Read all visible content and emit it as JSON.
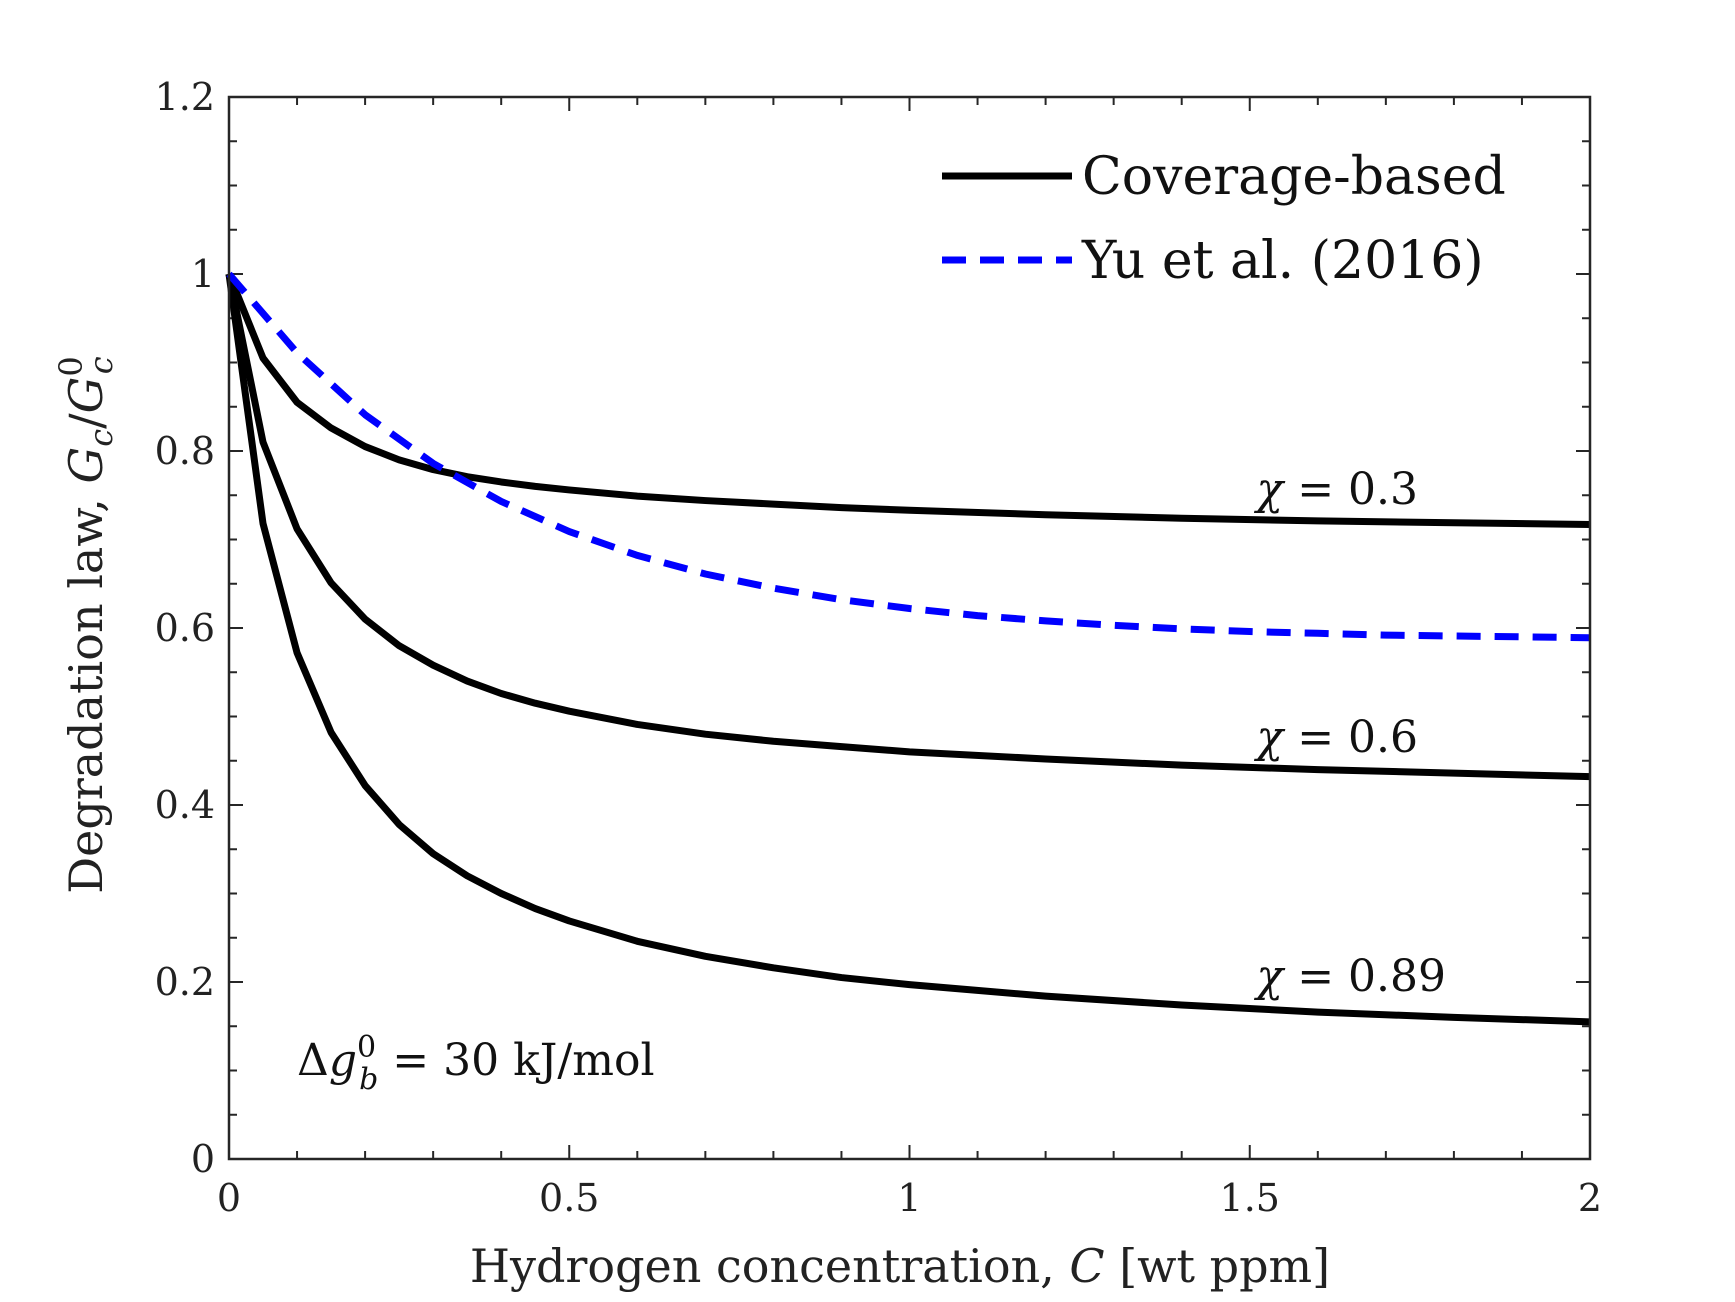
{
  "chart_data": {
    "type": "line",
    "title": "",
    "xlabel": {
      "prefix": "Hydrogen concentration, ",
      "symbol": "C",
      "suffix": " [wt ppm]"
    },
    "ylabel": {
      "prefix": "Degradation law, ",
      "num": "G",
      "num_sub": "c",
      "slash": "/",
      "den": "G",
      "den_sub": "c",
      "den_sup": "0"
    },
    "xlim": [
      0,
      2
    ],
    "ylim": [
      0,
      1.2
    ],
    "xticks": [
      0,
      0.5,
      1,
      1.5,
      2
    ],
    "xtick_labels": [
      "0",
      "0.5",
      "1",
      "1.5",
      "2"
    ],
    "yticks": [
      0,
      0.2,
      0.4,
      0.6,
      0.8,
      1,
      1.2
    ],
    "ytick_labels": [
      "0",
      "0.2",
      "0.4",
      "0.6",
      "0.8",
      "1",
      "1.2"
    ],
    "minor_x_step": 0.1,
    "minor_y_step": 0.05,
    "grid": false,
    "legend_position": "top-right",
    "legend": [
      {
        "label": "Coverage-based",
        "style": "solid",
        "color": "#000000"
      },
      {
        "label": "Yu et al. (2016)",
        "style": "dashed",
        "color": "#0000ff"
      }
    ],
    "series": [
      {
        "name": "Coverage-based, χ = 0.3",
        "style": "solid",
        "color": "#000000",
        "x": [
          0,
          0.05,
          0.1,
          0.15,
          0.2,
          0.25,
          0.3,
          0.35,
          0.4,
          0.45,
          0.5,
          0.6,
          0.7,
          0.8,
          0.9,
          1.0,
          1.2,
          1.4,
          1.6,
          1.8,
          2.0
        ],
        "y": [
          1.0,
          0.905,
          0.855,
          0.826,
          0.805,
          0.79,
          0.779,
          0.771,
          0.765,
          0.76,
          0.756,
          0.749,
          0.744,
          0.74,
          0.736,
          0.733,
          0.728,
          0.724,
          0.721,
          0.719,
          0.717
        ]
      },
      {
        "name": "Coverage-based, χ = 0.6",
        "style": "solid",
        "color": "#000000",
        "x": [
          0,
          0.05,
          0.1,
          0.15,
          0.2,
          0.25,
          0.3,
          0.35,
          0.4,
          0.45,
          0.5,
          0.6,
          0.7,
          0.8,
          0.9,
          1.0,
          1.2,
          1.4,
          1.6,
          1.8,
          2.0
        ],
        "y": [
          1.0,
          0.81,
          0.712,
          0.651,
          0.61,
          0.58,
          0.558,
          0.54,
          0.526,
          0.515,
          0.506,
          0.491,
          0.48,
          0.472,
          0.466,
          0.46,
          0.452,
          0.445,
          0.44,
          0.436,
          0.432
        ]
      },
      {
        "name": "Coverage-based, χ = 0.89",
        "style": "solid",
        "color": "#000000",
        "x": [
          0,
          0.05,
          0.1,
          0.15,
          0.2,
          0.25,
          0.3,
          0.35,
          0.4,
          0.45,
          0.5,
          0.6,
          0.7,
          0.8,
          0.9,
          1.0,
          1.2,
          1.4,
          1.6,
          1.8,
          2.0
        ],
        "y": [
          1.0,
          0.718,
          0.572,
          0.482,
          0.422,
          0.378,
          0.345,
          0.32,
          0.3,
          0.283,
          0.269,
          0.246,
          0.229,
          0.216,
          0.205,
          0.197,
          0.184,
          0.174,
          0.166,
          0.16,
          0.155
        ]
      },
      {
        "name": "Yu et al. (2016)",
        "style": "dashed",
        "color": "#0000ff",
        "x": [
          0,
          0.1,
          0.2,
          0.3,
          0.4,
          0.5,
          0.6,
          0.7,
          0.8,
          0.9,
          1.0,
          1.1,
          1.2,
          1.3,
          1.4,
          1.5,
          1.6,
          1.7,
          1.8,
          1.9,
          2.0
        ],
        "y": [
          1.0,
          0.911,
          0.841,
          0.786,
          0.743,
          0.709,
          0.682,
          0.661,
          0.645,
          0.632,
          0.622,
          0.614,
          0.608,
          0.603,
          0.599,
          0.596,
          0.594,
          0.592,
          0.591,
          0.59,
          0.589
        ]
      }
    ],
    "annotations": [
      {
        "symbol": "χ",
        "text": " = 0.3",
        "x": 1.51,
        "y": 0.74
      },
      {
        "symbol": "χ",
        "text": " = 0.6",
        "x": 1.51,
        "y": 0.46
      },
      {
        "symbol": "χ",
        "text": " = 0.89",
        "x": 1.51,
        "y": 0.19
      },
      {
        "prefix": "Δ",
        "symbol": "g",
        "sub": "b",
        "sup": "0",
        "text": " = 30 kJ/mol",
        "x": 0.1,
        "y": 0.095
      }
    ]
  }
}
